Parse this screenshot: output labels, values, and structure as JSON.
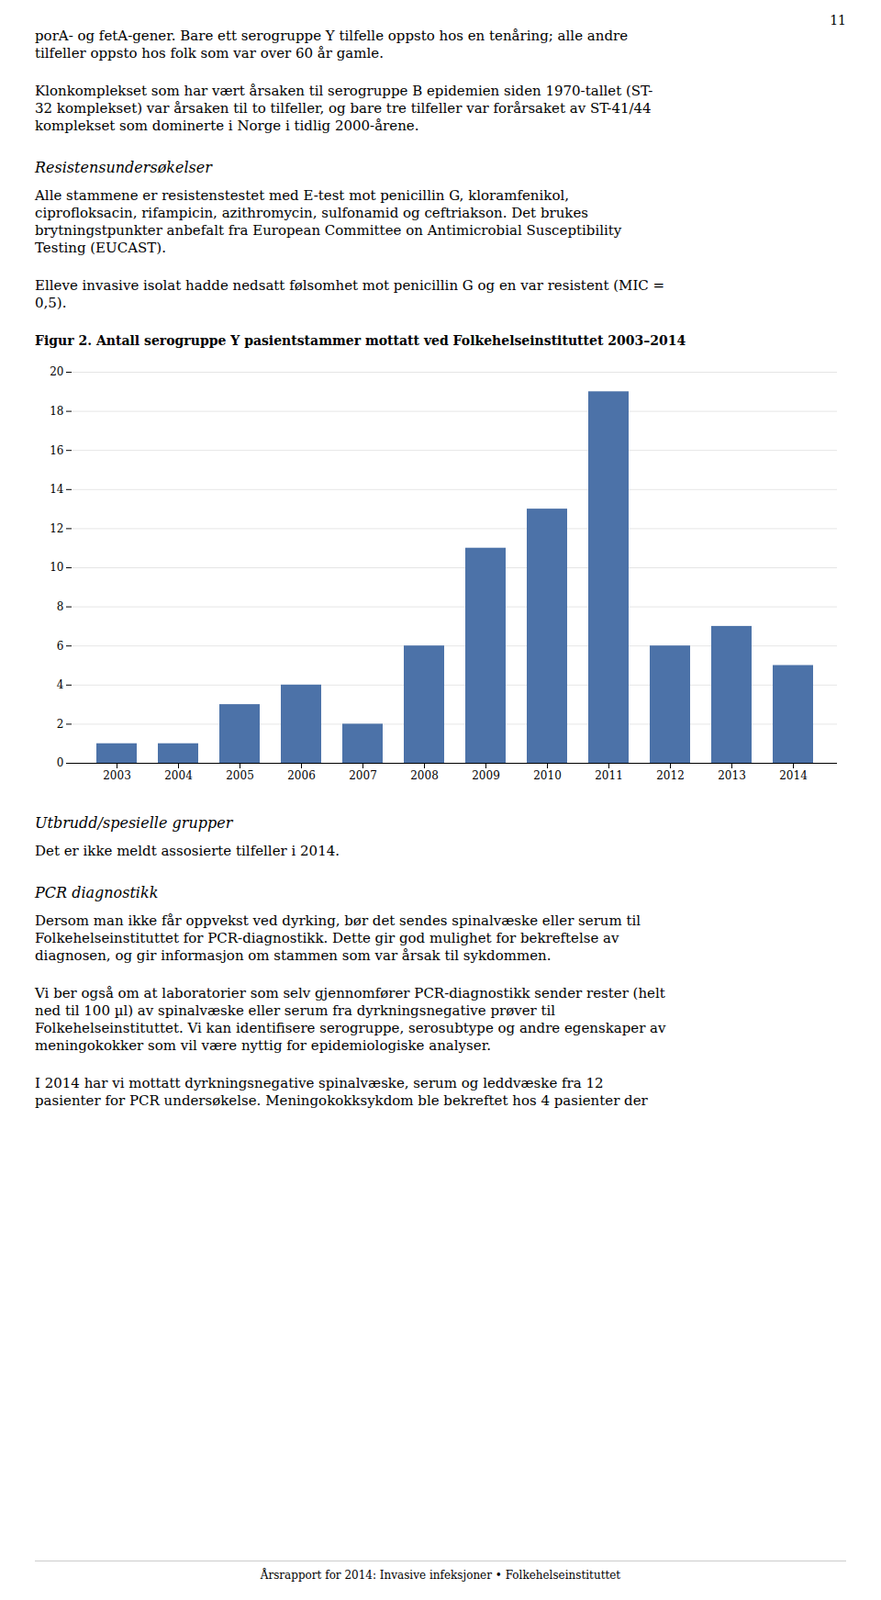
{
  "page_number": "11",
  "text_before_chart": [
    {
      "text": "porA- og fetA-gener. Bare ett serogruppe Y tilfelle oppsto hos en tenåring; alle andre\ntilfeller oppsto hos folk som var over 60 år gamle.",
      "style": "normal"
    },
    {
      "text": "Klonkomplekset som har vært årsaken til serogruppe B epidemien siden 1970-tallet (ST-\n32 komplekset) var årsaken til to tilfeller, og bare tre tilfeller var forårsaket av ST-41/44\nkomplekset som dominerte i Norge i tidlig 2000-årene.",
      "style": "normal"
    },
    {
      "text": "Resistensundersøkelser",
      "style": "italic_heading"
    },
    {
      "text": "Alle stammene er resistenstestet med E-test mot penicillin G, kloramfenikol,\nciprofloksacin, rifampicin, azithromycin, sulfonamid og ceftriakson. Det brukes\nbrytningstpunkter anbefalt fra European Committee on Antimicrobial Susceptibility\nTesting (EUCAST).",
      "style": "normal"
    },
    {
      "text": "Elleve invasive isolat hadde nedsatt følsomhet mot penicillin G og en var resistent (MIC =\n0,5).",
      "style": "normal"
    }
  ],
  "chart_data": {
    "type": "bar",
    "title": "Figur 2. Antall serogruppe Y pasientstammer mottatt ved Folkehelseinstituttet 2003–2014",
    "categories": [
      "2003",
      "2004",
      "2005",
      "2006",
      "2007",
      "2008",
      "2009",
      "2010",
      "2011",
      "2012",
      "2013",
      "2014"
    ],
    "values": [
      1,
      1,
      3,
      4,
      2,
      6,
      11,
      13,
      19,
      6,
      7,
      5
    ],
    "color": "#4C72A8",
    "ylim": [
      0,
      20
    ],
    "yticks": [
      0,
      2,
      4,
      6,
      8,
      10,
      12,
      14,
      16,
      18,
      20
    ],
    "grid": true
  },
  "text_after_chart": [
    {
      "text": "Utbrudd/spesielle grupper",
      "style": "italic_heading"
    },
    {
      "text": "Det er ikke meldt assosierte tilfeller i 2014.",
      "style": "normal"
    },
    {
      "text": "PCR diagnostikk",
      "style": "italic_heading"
    },
    {
      "text": "Dersom man ikke får oppvekst ved dyrking, bør det sendes spinalvæske eller serum til\nFolkehelseinstituttet for PCR-diagnostikk. Dette gir god mulighet for bekreftelse av\ndiagnosen, og gir informasjon om stammen som var årsak til sykdommen.",
      "style": "normal"
    },
    {
      "text": "Vi ber også om at laboratorier som selv gjennomfører PCR-diagnostikk sender rester (helt\nned til 100 µl) av spinalvæske eller serum fra dyrkningsnegative prøver til\nFolkehelseinstituttet. Vi kan identifisere serogruppe, serosubtype og andre egenskaper av\nmeningokokker som vil være nyttig for epidemiologiske analyser.",
      "style": "normal"
    },
    {
      "text": "I 2014 har vi mottatt dyrkningsnegative spinalvæske, serum og leddvæske fra 12\npasienter for PCR undersøkelse. Meningokokksykdom ble bekreftet hos 4 pasienter der",
      "style": "normal"
    }
  ],
  "footer": "Årsrapport for 2014: Invasive infeksjoner • Folkehelseinstituttet"
}
